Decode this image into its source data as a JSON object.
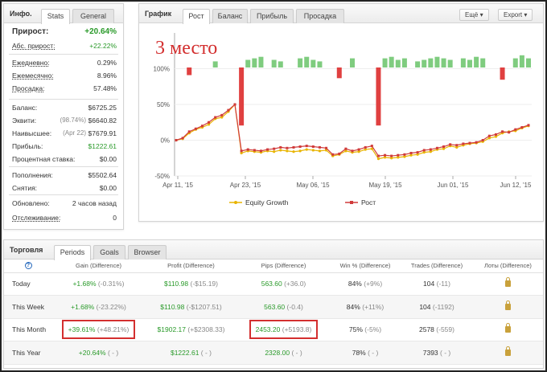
{
  "info": {
    "title": "Инфо.",
    "tabs": [
      "Stats",
      "General"
    ],
    "rows": [
      {
        "key": "Прирост:",
        "value": "+20.64%"
      },
      {
        "key": "Абс. прирост:",
        "value": "+22.22%"
      },
      {
        "key": "Ежедневно:",
        "value": "0.29%"
      },
      {
        "key": "Ежемесячно:",
        "value": "8.96%"
      },
      {
        "key": "Просадка:",
        "value": "57.48%"
      },
      {
        "key": "Баланс:",
        "value": "$6725.25"
      },
      {
        "key": "Эквити:",
        "mid": "(98.74%)",
        "value": "$6640.82"
      },
      {
        "key": "Наивысшее:",
        "mid": "(Apr 22)",
        "value": "$7679.91"
      },
      {
        "key": "Прибыль:",
        "value": "$1222.61"
      },
      {
        "key": "Процентная ставка:",
        "value": "$0.00"
      },
      {
        "key": "Пополнения:",
        "value": "$5502.64"
      },
      {
        "key": "Снятия:",
        "value": "$0.00"
      },
      {
        "key": "Обновлено:",
        "value": "2 часов назад"
      },
      {
        "key": "Отслеживание:",
        "value": "0"
      }
    ]
  },
  "chart_panel": {
    "title": "График",
    "tabs": [
      "Рост",
      "Баланс",
      "Прибыль",
      "Просадка"
    ],
    "buttons": [
      "Ещё",
      "Export"
    ],
    "overlay_text": "3 место"
  },
  "chart_data": {
    "type": "line",
    "yticks": [
      "100%",
      "50%",
      "0%",
      "-50%"
    ],
    "ylim": [
      -50,
      150
    ],
    "xticks": [
      "Apr 11, '15",
      "Apr 23, '15",
      "May 06, '15",
      "May 19, '15",
      "Jun 01, '15",
      "Jun 12, '15"
    ],
    "legend": [
      "Equity Growth",
      "Рост"
    ],
    "colors": {
      "equity": "#e8b400",
      "growth": "#d03a3a",
      "bar_pos": "#7fcc7f",
      "bar_neg": "#e04040"
    },
    "series": [
      {
        "name": "Equity Growth",
        "values": [
          0,
          2,
          10,
          15,
          18,
          22,
          30,
          32,
          40,
          50,
          -18,
          -15,
          -16,
          -17,
          -15,
          -16,
          -14,
          -15,
          -16,
          -15,
          -13,
          -14,
          -15,
          -14,
          -22,
          -20,
          -15,
          -17,
          -16,
          -13,
          -12,
          -26,
          -24,
          -25,
          -24,
          -23,
          -21,
          -20,
          -17,
          -16,
          -13,
          -12,
          -8,
          -10,
          -7,
          -5,
          -4,
          -2,
          3,
          5,
          10,
          12,
          13,
          17,
          20
        ]
      },
      {
        "name": "Рост",
        "values": [
          0,
          3,
          12,
          16,
          20,
          25,
          32,
          35,
          42,
          50,
          -15,
          -13,
          -14,
          -15,
          -13,
          -12,
          -10,
          -11,
          -10,
          -9,
          -8,
          -9,
          -10,
          -11,
          -20,
          -19,
          -12,
          -15,
          -13,
          -10,
          -8,
          -22,
          -21,
          -22,
          -21,
          -20,
          -18,
          -17,
          -14,
          -13,
          -11,
          -9,
          -6,
          -7,
          -5,
          -4,
          -3,
          0,
          6,
          8,
          12,
          11,
          15,
          18,
          21
        ]
      }
    ],
    "bars": [
      0,
      0,
      -5,
      0,
      0,
      0,
      4,
      0,
      0,
      0,
      -38,
      5,
      6,
      7,
      0,
      5,
      4,
      0,
      0,
      6,
      7,
      5,
      4,
      0,
      0,
      -7,
      0,
      6,
      0,
      0,
      0,
      -38,
      6,
      7,
      5,
      6,
      0,
      4,
      5,
      6,
      7,
      6,
      5,
      0,
      6,
      5,
      7,
      6,
      0,
      0,
      -8,
      0,
      6,
      8,
      6
    ]
  },
  "trading": {
    "title": "Торговля",
    "tabs": [
      "Periods",
      "Goals",
      "Browser"
    ],
    "help": "?",
    "columns": [
      "Gain (Difference)",
      "Profit (Difference)",
      "Pips (Difference)",
      "Win % (Difference)",
      "Trades (Difference)",
      "Лоты (Difference)"
    ],
    "rows": [
      {
        "label": "Today",
        "gain": "+1.68%",
        "gain_diff": "(-0.31%)",
        "profit": "$110.98",
        "profit_diff": "(-$15.19)",
        "pips": "563.60",
        "pips_diff": "(+36.0)",
        "win": "84%",
        "win_diff": "(+9%)",
        "trades": "104",
        "trades_diff": "(-11)"
      },
      {
        "label": "This Week",
        "gain": "+1.68%",
        "gain_diff": "(-23.22%)",
        "profit": "$110.98",
        "profit_diff": "(-$1207.51)",
        "pips": "563.60",
        "pips_diff": "(-0.4)",
        "win": "84%",
        "win_diff": "(+11%)",
        "trades": "104",
        "trades_diff": "(-1192)"
      },
      {
        "label": "This Month",
        "gain": "+39.61%",
        "gain_diff": "(+48.21%)",
        "profit": "$1902.17",
        "profit_diff": "(+$2308.33)",
        "pips": "2453.20",
        "pips_diff": "(+5193.8)",
        "win": "75%",
        "win_diff": "(-5%)",
        "trades": "2578",
        "trades_diff": "(-559)"
      },
      {
        "label": "This Year",
        "gain": "+20.64%",
        "gain_diff": "( - )",
        "profit": "$1222.61",
        "profit_diff": "( - )",
        "pips": "2328.00",
        "pips_diff": "( - )",
        "win": "78%",
        "win_diff": "( - )",
        "trades": "7393",
        "trades_diff": "( - )"
      }
    ]
  }
}
